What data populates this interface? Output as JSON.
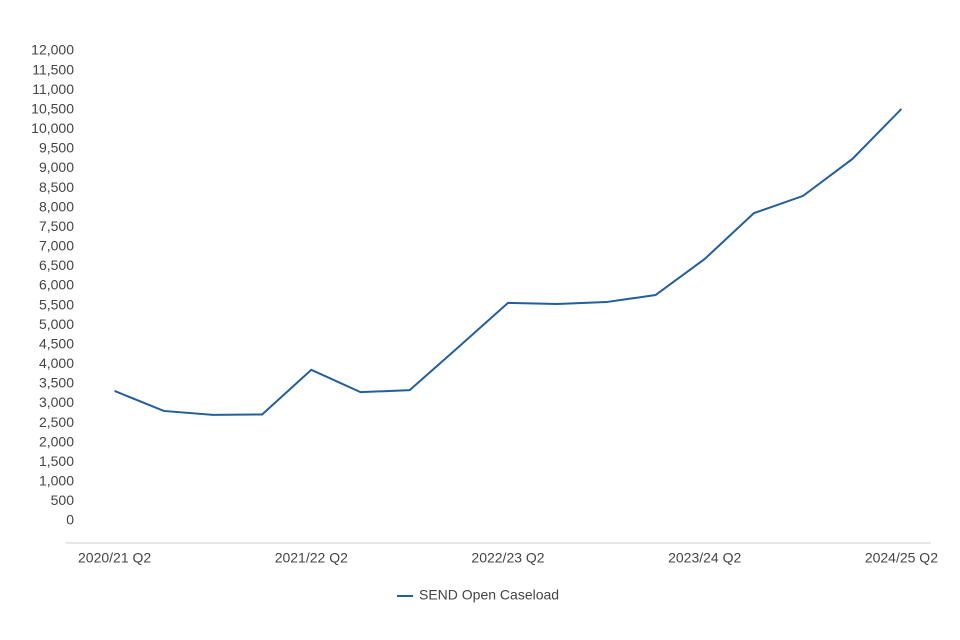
{
  "chart_data": {
    "type": "line",
    "categories": [
      "2020/21 Q2",
      null,
      null,
      null,
      "2021/22 Q2",
      null,
      null,
      null,
      "2022/23 Q2",
      null,
      null,
      null,
      "2023/24 Q2",
      null,
      null,
      null,
      "2024/25 Q2"
    ],
    "series": [
      {
        "name": "SEND Open Caseload",
        "color": "#235f9c",
        "values": [
          3320,
          2810,
          2710,
          2720,
          3860,
          3290,
          3340,
          4450,
          5570,
          5540,
          5590,
          5770,
          6690,
          7860,
          8300,
          9240,
          10520
        ]
      }
    ],
    "ylim": [
      0,
      12000
    ],
    "yticks": [
      0,
      500,
      {
        "value": 1000,
        "label": "1,000"
      },
      {
        "value": 1500,
        "label": "1,500"
      },
      {
        "value": 2000,
        "label": "2,000"
      },
      {
        "value": 2500,
        "label": "2,500"
      },
      {
        "value": 3000,
        "label": "3,000"
      },
      {
        "value": 3500,
        "label": "3,500"
      },
      {
        "value": 4000,
        "label": "4,000"
      },
      {
        "value": 4500,
        "label": "4,500"
      },
      {
        "value": 5000,
        "label": "5,000"
      },
      {
        "value": 5500,
        "label": "5,500"
      },
      {
        "value": 6000,
        "label": "6,000"
      },
      {
        "value": 6500,
        "label": "6,500"
      },
      {
        "value": 7000,
        "label": "7,000"
      },
      {
        "value": 7500,
        "label": "7,500"
      },
      {
        "value": 8000,
        "label": "8,000"
      },
      {
        "value": 8500,
        "label": "8,500"
      },
      {
        "value": 9000,
        "label": "9,000"
      },
      {
        "value": 9500,
        "label": "9,500"
      },
      {
        "value": 10000,
        "label": "10,000"
      },
      {
        "value": 10500,
        "label": "10,500"
      },
      {
        "value": 11000,
        "label": "11,000"
      },
      {
        "value": 11500,
        "label": "11,500"
      },
      {
        "value": 12000,
        "label": "12,000"
      }
    ],
    "grid": false,
    "legend": "bottom"
  }
}
